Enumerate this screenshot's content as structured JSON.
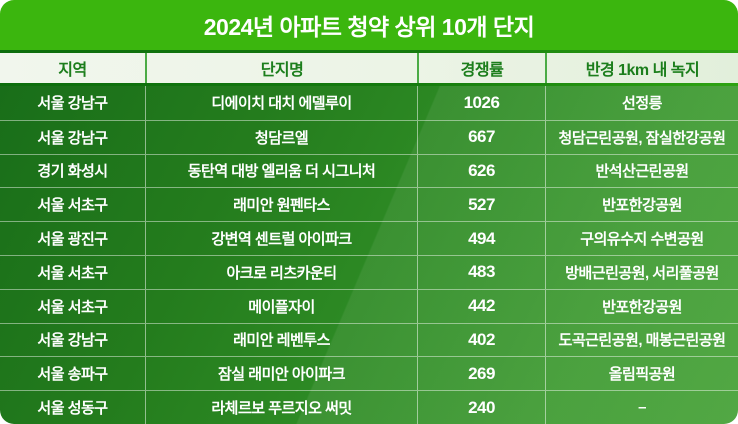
{
  "card": {
    "title": "2024년 아파트 청약 상위 10개 단지"
  },
  "colors": {
    "title_bar_green": "#3bb60e",
    "header_bg": "#eef4e9",
    "header_text_green": "#1c7e1c",
    "separator_dark_green": "#0d6d0d",
    "body_green_top_left": "#196e19",
    "body_green_bottom_right": "#45a136",
    "body_text": "#ffffff"
  },
  "chart_data": {
    "type": "table",
    "title": "2024년 아파트 청약 상위 10개 단지",
    "columns": [
      {
        "key": "region",
        "label": "지역"
      },
      {
        "key": "complex",
        "label": "단지명"
      },
      {
        "key": "ratio",
        "label": "경쟁률"
      },
      {
        "key": "green",
        "label": "반경 1km 내 녹지"
      }
    ],
    "rows": [
      {
        "region": "서울 강남구",
        "complex": "디에이치 대치 에델루이",
        "ratio": "1026",
        "green": "선정릉"
      },
      {
        "region": "서울 강남구",
        "complex": "청담르엘",
        "ratio": "667",
        "green": "청담근린공원, 잠실한강공원"
      },
      {
        "region": "경기 화성시",
        "complex": "동탄역 대방 엘리움 더 시그니처",
        "ratio": "626",
        "green": "반석산근린공원"
      },
      {
        "region": "서울 서초구",
        "complex": "래미안 원펜타스",
        "ratio": "527",
        "green": "반포한강공원"
      },
      {
        "region": "서울 광진구",
        "complex": "강변역 센트럴 아이파크",
        "ratio": "494",
        "green": "구의유수지 수변공원"
      },
      {
        "region": "서울 서초구",
        "complex": "아크로 리츠카운티",
        "ratio": "483",
        "green": "방배근린공원, 서리풀공원"
      },
      {
        "region": "서울 서초구",
        "complex": "메이플자이",
        "ratio": "442",
        "green": "반포한강공원"
      },
      {
        "region": "서울 강남구",
        "complex": "래미안 레벤투스",
        "ratio": "402",
        "green": "도곡근린공원, 매봉근린공원"
      },
      {
        "region": "서울 송파구",
        "complex": "잠실 래미안 아이파크",
        "ratio": "269",
        "green": "올림픽공원"
      },
      {
        "region": "서울 성동구",
        "complex": "라체르보 푸르지오 써밋",
        "ratio": "240",
        "green": "–"
      }
    ]
  }
}
